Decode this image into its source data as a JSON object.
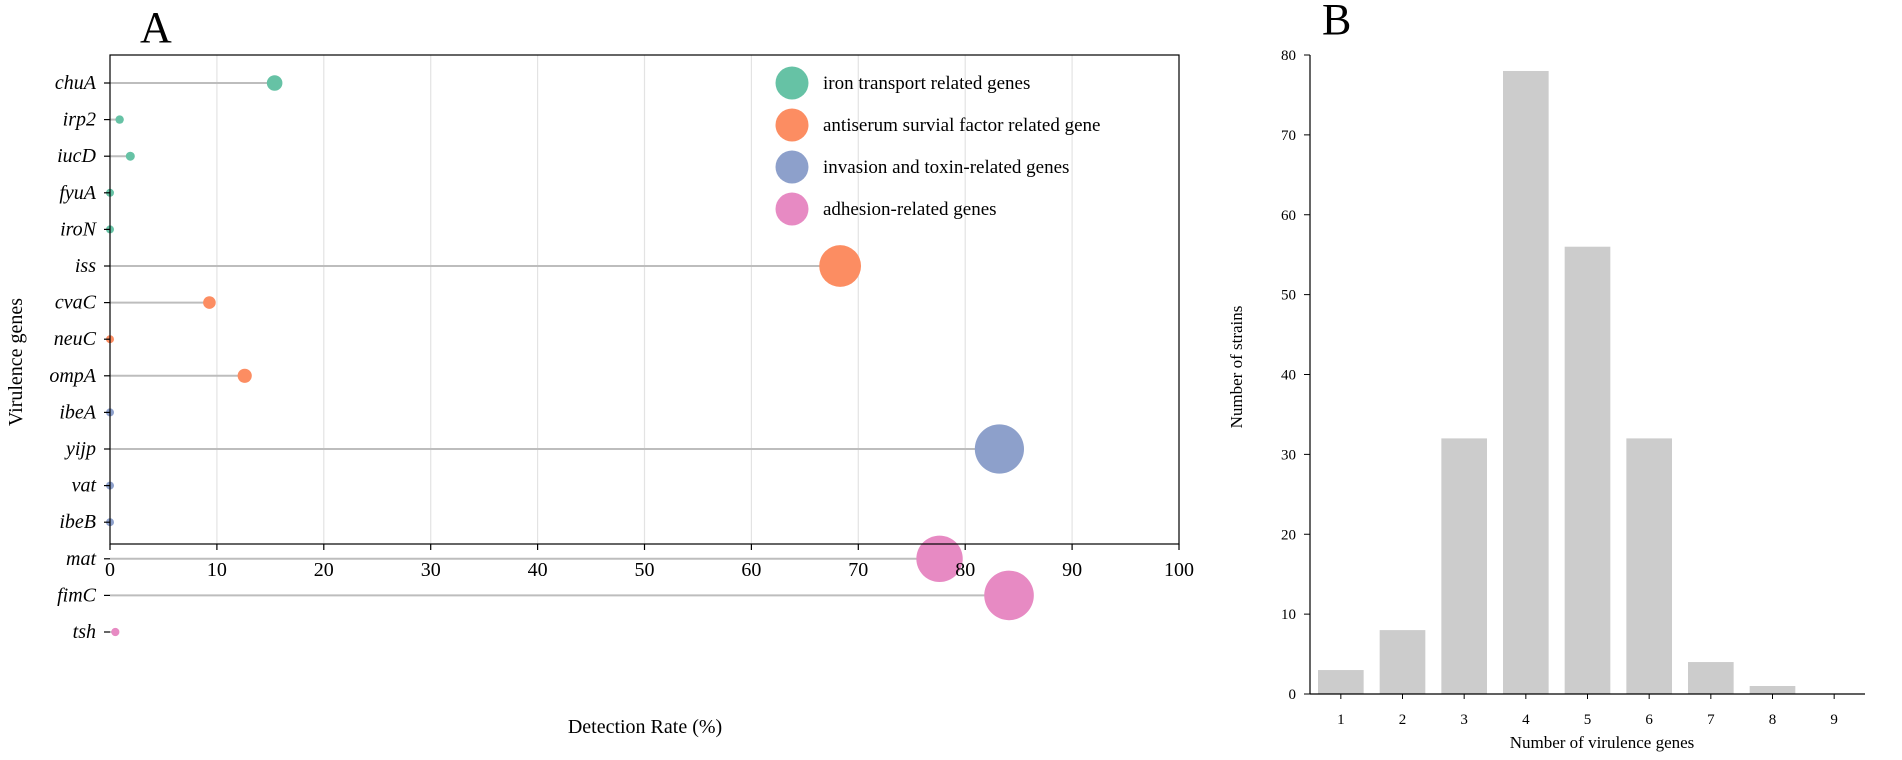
{
  "chart_data": [
    {
      "panel": "A",
      "type": "scatter",
      "xlabel": "Detection Rate (%)",
      "ylabel": "Virulence genes",
      "xlim": [
        0,
        100
      ],
      "xticks": [
        0,
        10,
        20,
        30,
        40,
        50,
        60,
        70,
        80,
        90,
        100
      ],
      "grid": "vertical",
      "legend_position": "top-right",
      "categories": [
        {
          "name": "iron transport related genes",
          "color": "#66c2a5"
        },
        {
          "name": "antiserum survial factor related gene",
          "color": "#fc8d62"
        },
        {
          "name": "invasion and toxin-related genes",
          "color": "#8da0cb"
        },
        {
          "name": "adhesion-related genes",
          "color": "#e78ac3"
        }
      ],
      "points": [
        {
          "gene": "chuA",
          "value": 15.4,
          "category": 0
        },
        {
          "gene": "irp2",
          "value": 0.9,
          "category": 0
        },
        {
          "gene": "iucD",
          "value": 1.9,
          "category": 0
        },
        {
          "gene": "fyuA",
          "value": 0.0,
          "category": 0
        },
        {
          "gene": "iroN",
          "value": 0.0,
          "category": 0
        },
        {
          "gene": "iss",
          "value": 68.3,
          "category": 1
        },
        {
          "gene": "cvaC",
          "value": 9.3,
          "category": 1
        },
        {
          "gene": "neuC",
          "value": 0.0,
          "category": 1
        },
        {
          "gene": "ompA",
          "value": 12.6,
          "category": 1
        },
        {
          "gene": "ibeA",
          "value": 0.0,
          "category": 2
        },
        {
          "gene": "yijp",
          "value": 83.2,
          "category": 2
        },
        {
          "gene": "vat",
          "value": 0.0,
          "category": 2
        },
        {
          "gene": "ibeB",
          "value": 0.0,
          "category": 2
        },
        {
          "gene": "mat",
          "value": 77.6,
          "category": 3
        },
        {
          "gene": "fimC",
          "value": 84.1,
          "category": 3
        },
        {
          "gene": "tsh",
          "value": 0.5,
          "category": 3
        }
      ]
    },
    {
      "panel": "B",
      "type": "bar",
      "xlabel": "Number of virulence genes",
      "ylabel": "Number of strains",
      "ylim": [
        0,
        80
      ],
      "yticks": [
        0,
        10,
        20,
        30,
        40,
        50,
        60,
        70,
        80
      ],
      "categories": [
        "1",
        "2",
        "3",
        "4",
        "5",
        "6",
        "7",
        "8",
        "9"
      ],
      "values": [
        3,
        8,
        32,
        78,
        56,
        32,
        4,
        1,
        0
      ],
      "bar_color": "#cccccc"
    }
  ]
}
